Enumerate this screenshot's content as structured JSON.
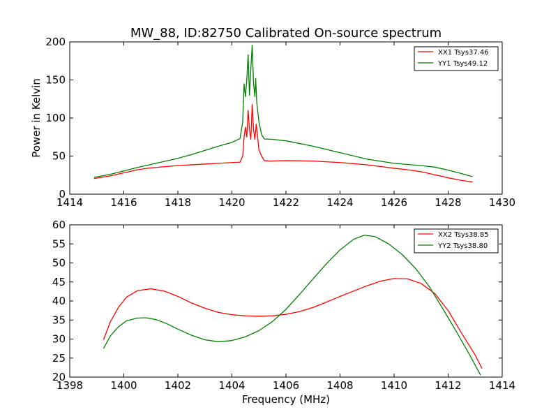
{
  "chart_data": [
    {
      "type": "line",
      "title": "MW_88, ID:82750 Calibrated On-source spectrum",
      "xlabel": "",
      "ylabel": "Power in Kelvin",
      "xlim": [
        1414,
        1430
      ],
      "ylim": [
        0,
        200
      ],
      "xticks": [
        1414,
        1416,
        1418,
        1420,
        1422,
        1424,
        1426,
        1428,
        1430
      ],
      "yticks": [
        0,
        50,
        100,
        150,
        200
      ],
      "legend_position": "top-right",
      "series": [
        {
          "name": "XX1 Tsys37.46",
          "color": "#ff0000",
          "points": [
            [
              1414.9,
              20.5
            ],
            [
              1415.5,
              24
            ],
            [
              1416,
              28
            ],
            [
              1416.5,
              32
            ],
            [
              1417,
              34.5
            ],
            [
              1417.5,
              36
            ],
            [
              1418,
              37.5
            ],
            [
              1419,
              39.5
            ],
            [
              1419.5,
              40.5
            ],
            [
              1420,
              41.5
            ],
            [
              1420.3,
              42
            ],
            [
              1420.4,
              50
            ],
            [
              1420.45,
              75
            ],
            [
              1420.5,
              88
            ],
            [
              1420.55,
              75
            ],
            [
              1420.6,
              110
            ],
            [
              1420.65,
              85
            ],
            [
              1420.7,
              72
            ],
            [
              1420.75,
              118
            ],
            [
              1420.8,
              85
            ],
            [
              1420.85,
              72
            ],
            [
              1420.9,
              92
            ],
            [
              1420.95,
              75
            ],
            [
              1421.0,
              58
            ],
            [
              1421.1,
              50
            ],
            [
              1421.2,
              44
            ],
            [
              1421.4,
              43.5
            ],
            [
              1422,
              44
            ],
            [
              1423,
              43.5
            ],
            [
              1424,
              41.5
            ],
            [
              1425,
              38.5
            ],
            [
              1426,
              34
            ],
            [
              1426.5,
              32
            ],
            [
              1427,
              29.5
            ],
            [
              1427.5,
              25.5
            ],
            [
              1428,
              21.5
            ],
            [
              1428.5,
              18
            ],
            [
              1428.9,
              16
            ]
          ]
        },
        {
          "name": "YY1 Tsys49.12",
          "color": "#008000",
          "points": [
            [
              1414.9,
              22
            ],
            [
              1415.5,
              26
            ],
            [
              1416,
              30.5
            ],
            [
              1416.5,
              35
            ],
            [
              1417,
              39
            ],
            [
              1417.5,
              43
            ],
            [
              1418,
              47
            ],
            [
              1418.5,
              52
            ],
            [
              1419,
              57.5
            ],
            [
              1419.5,
              63
            ],
            [
              1420,
              68
            ],
            [
              1420.3,
              73
            ],
            [
              1420.4,
              95
            ],
            [
              1420.45,
              145
            ],
            [
              1420.5,
              128
            ],
            [
              1420.55,
              150
            ],
            [
              1420.6,
              183
            ],
            [
              1420.65,
              130
            ],
            [
              1420.7,
              165
            ],
            [
              1420.75,
              196
            ],
            [
              1420.8,
              145
            ],
            [
              1420.85,
              128
            ],
            [
              1420.88,
              152
            ],
            [
              1420.92,
              120
            ],
            [
              1421.0,
              95
            ],
            [
              1421.1,
              78
            ],
            [
              1421.2,
              72.5
            ],
            [
              1421.5,
              72
            ],
            [
              1422,
              70
            ],
            [
              1423,
              63
            ],
            [
              1424,
              54.5
            ],
            [
              1425,
              46
            ],
            [
              1426,
              40.5
            ],
            [
              1427,
              37.5
            ],
            [
              1427.5,
              35.5
            ],
            [
              1428,
              31.5
            ],
            [
              1428.5,
              27
            ],
            [
              1428.9,
              23
            ]
          ]
        }
      ]
    },
    {
      "type": "line",
      "title": "",
      "xlabel": "Frequency (MHz)",
      "ylabel": "",
      "xlim": [
        1398,
        1414
      ],
      "ylim": [
        20,
        60
      ],
      "xticks": [
        1398,
        1400,
        1402,
        1404,
        1406,
        1408,
        1410,
        1412,
        1414
      ],
      "yticks": [
        20,
        25,
        30,
        35,
        40,
        45,
        50,
        55,
        60
      ],
      "legend_position": "top-right",
      "series": [
        {
          "name": "XX2 Tsys38.85",
          "color": "#ff0000",
          "points": [
            [
              1399.25,
              29.8
            ],
            [
              1399.5,
              34.5
            ],
            [
              1399.8,
              38.3
            ],
            [
              1400.1,
              41
            ],
            [
              1400.5,
              42.7
            ],
            [
              1401,
              43.2
            ],
            [
              1401.5,
              42.6
            ],
            [
              1402,
              41.2
            ],
            [
              1402.5,
              39.5
            ],
            [
              1403,
              38.1
            ],
            [
              1403.5,
              37
            ],
            [
              1404,
              36.4
            ],
            [
              1404.5,
              36.1
            ],
            [
              1405,
              36
            ],
            [
              1405.5,
              36.1
            ],
            [
              1406,
              36.5
            ],
            [
              1406.5,
              37.2
            ],
            [
              1407,
              38.3
            ],
            [
              1407.5,
              39.7
            ],
            [
              1408,
              41.2
            ],
            [
              1408.5,
              42.6
            ],
            [
              1409,
              44
            ],
            [
              1409.5,
              45.2
            ],
            [
              1410,
              45.9
            ],
            [
              1410.5,
              45.8
            ],
            [
              1411,
              44.6
            ],
            [
              1411.5,
              42
            ],
            [
              1412,
              37.5
            ],
            [
              1412.5,
              31.5
            ],
            [
              1413,
              25.8
            ],
            [
              1413.25,
              22.3
            ]
          ]
        },
        {
          "name": "YY2 Tsys38.80",
          "color": "#008000",
          "points": [
            [
              1399.25,
              27.5
            ],
            [
              1399.5,
              30.8
            ],
            [
              1399.8,
              33.2
            ],
            [
              1400.1,
              34.8
            ],
            [
              1400.5,
              35.5
            ],
            [
              1400.8,
              35.6
            ],
            [
              1401.2,
              35.1
            ],
            [
              1401.6,
              34
            ],
            [
              1402,
              32.6
            ],
            [
              1402.5,
              31
            ],
            [
              1403,
              29.8
            ],
            [
              1403.5,
              29.3
            ],
            [
              1404,
              29.6
            ],
            [
              1404.5,
              30.6
            ],
            [
              1405,
              32.2
            ],
            [
              1405.5,
              34.6
            ],
            [
              1406,
              37.8
            ],
            [
              1406.5,
              41.7
            ],
            [
              1407,
              45.8
            ],
            [
              1407.5,
              49.8
            ],
            [
              1408,
              53.4
            ],
            [
              1408.5,
              56.2
            ],
            [
              1408.9,
              57.3
            ],
            [
              1409.3,
              56.9
            ],
            [
              1409.8,
              55
            ],
            [
              1410.3,
              52.2
            ],
            [
              1410.8,
              48.5
            ],
            [
              1411.3,
              43.8
            ],
            [
              1411.8,
              38
            ],
            [
              1412.3,
              32
            ],
            [
              1412.8,
              25.8
            ],
            [
              1413.2,
              20.5
            ]
          ]
        }
      ]
    }
  ]
}
